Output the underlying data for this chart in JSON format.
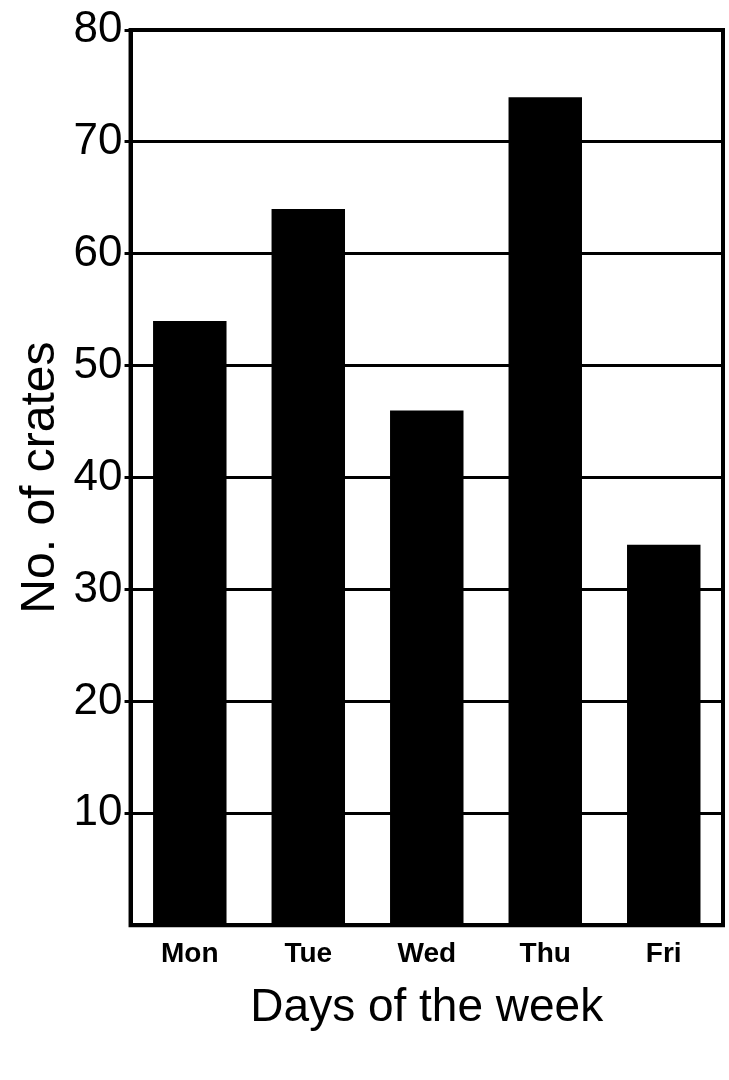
{
  "chart_data": {
    "type": "bar",
    "xlabel": "Days of the week",
    "ylabel": "No. of crates",
    "categories": [
      "Mon",
      "Tue",
      "Wed",
      "Thu",
      "Fri"
    ],
    "values": [
      54,
      64,
      46,
      74,
      34
    ],
    "color": "#000000",
    "ylim": [
      0,
      80
    ],
    "yticks": [
      10,
      20,
      30,
      40,
      50,
      60,
      70,
      80
    ],
    "grid": "y"
  }
}
